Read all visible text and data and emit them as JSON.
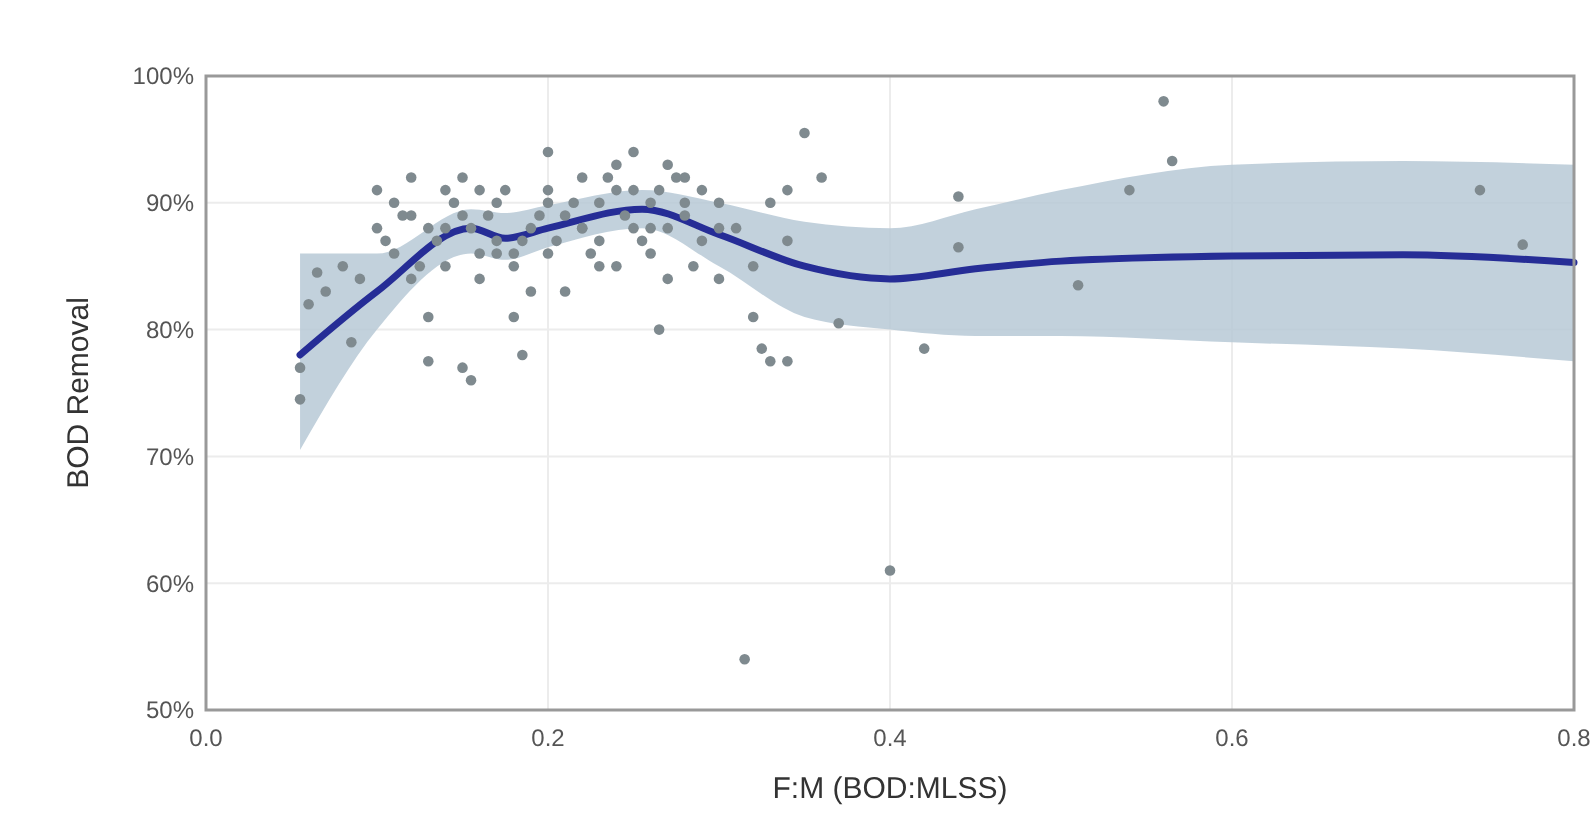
{
  "chart_data": {
    "type": "scatter",
    "xlabel": "F:M (BOD:MLSS)",
    "ylabel": "BOD Removal",
    "xlim": [
      0,
      0.8
    ],
    "ylim": [
      50,
      100
    ],
    "xticks": [
      {
        "value": 0,
        "label": "0.0"
      },
      {
        "value": 0.2,
        "label": "0.2"
      },
      {
        "value": 0.4,
        "label": "0.4"
      },
      {
        "value": 0.6,
        "label": "0.6"
      },
      {
        "value": 0.8,
        "label": "0.8"
      }
    ],
    "yticks": [
      {
        "value": 50,
        "label": "50%"
      },
      {
        "value": 60,
        "label": "60%"
      },
      {
        "value": 70,
        "label": "70%"
      },
      {
        "value": 80,
        "label": "80%"
      },
      {
        "value": 90,
        "label": "90%"
      },
      {
        "value": 100,
        "label": "100%"
      }
    ],
    "grid": true,
    "series": [
      {
        "color": "#7f8a8f",
        "marker": "circle",
        "x": [
          0.055,
          0.055,
          0.06,
          0.065,
          0.07,
          0.08,
          0.085,
          0.09,
          0.1,
          0.1,
          0.11,
          0.11,
          0.12,
          0.12,
          0.13,
          0.13,
          0.13,
          0.14,
          0.14,
          0.15,
          0.15,
          0.155,
          0.15,
          0.16,
          0.16,
          0.17,
          0.17,
          0.18,
          0.18,
          0.185,
          0.19,
          0.2,
          0.2,
          0.2,
          0.21,
          0.21,
          0.22,
          0.22,
          0.23,
          0.23,
          0.24,
          0.24,
          0.25,
          0.25,
          0.25,
          0.26,
          0.26,
          0.265,
          0.27,
          0.27,
          0.28,
          0.28,
          0.29,
          0.29,
          0.3,
          0.3,
          0.31,
          0.32,
          0.32,
          0.325,
          0.33,
          0.34,
          0.33,
          0.34,
          0.35,
          0.36,
          0.37,
          0.34,
          0.315,
          0.4,
          0.42,
          0.44,
          0.44,
          0.51,
          0.54,
          0.56,
          0.565,
          0.745,
          0.77,
          0.105,
          0.115,
          0.125,
          0.135,
          0.145,
          0.155,
          0.165,
          0.175,
          0.185,
          0.195,
          0.205,
          0.215,
          0.225,
          0.235,
          0.245,
          0.255,
          0.265,
          0.275,
          0.285,
          0.14,
          0.16,
          0.18,
          0.2,
          0.22,
          0.24,
          0.26,
          0.28,
          0.12,
          0.17,
          0.19,
          0.23,
          0.27,
          0.3
        ],
        "values": [
          74.5,
          77,
          82,
          84.5,
          83,
          85,
          79,
          84,
          88,
          91,
          90,
          86,
          89,
          92,
          77.5,
          81,
          88,
          91,
          85,
          92,
          77,
          76,
          89,
          91,
          86,
          87,
          90,
          81,
          85,
          78,
          88,
          91,
          94,
          86,
          89,
          83,
          92,
          88,
          90,
          87,
          93,
          85,
          94,
          91,
          88,
          86,
          90,
          80,
          93,
          88,
          89,
          92,
          91,
          87,
          84,
          90,
          88,
          85,
          81,
          78.5,
          77.5,
          77.5,
          90,
          91,
          95.5,
          92,
          80.5,
          87,
          54,
          61,
          78.5,
          90.5,
          86.5,
          83.5,
          91,
          98,
          93.3,
          91,
          86.7,
          87,
          89,
          85,
          87,
          90,
          88,
          89,
          91,
          87,
          89,
          87,
          90,
          86,
          92,
          89,
          87,
          91,
          92,
          85,
          88,
          84,
          86,
          90,
          88,
          91,
          88,
          90,
          84,
          86,
          83,
          85,
          84,
          88
        ]
      },
      {
        "type": "line",
        "color": "#262d96",
        "x": [
          0.055,
          0.1,
          0.155,
          0.175,
          0.2,
          0.255,
          0.3,
          0.35,
          0.4,
          0.45,
          0.5,
          0.6,
          0.7,
          0.8
        ],
        "values": [
          78,
          83,
          88,
          87.2,
          88,
          89.5,
          87.5,
          85,
          84,
          84.8,
          85.4,
          85.8,
          85.9,
          85.3
        ],
        "lower": [
          70.5,
          80,
          86,
          85.5,
          86.5,
          88,
          85,
          81,
          80,
          79.5,
          79.5,
          79,
          78.5,
          77.5
        ],
        "upper": [
          86,
          86,
          89.5,
          89.2,
          89.8,
          91,
          90,
          88.5,
          88,
          89.5,
          91,
          93,
          93.3,
          93
        ]
      }
    ]
  }
}
